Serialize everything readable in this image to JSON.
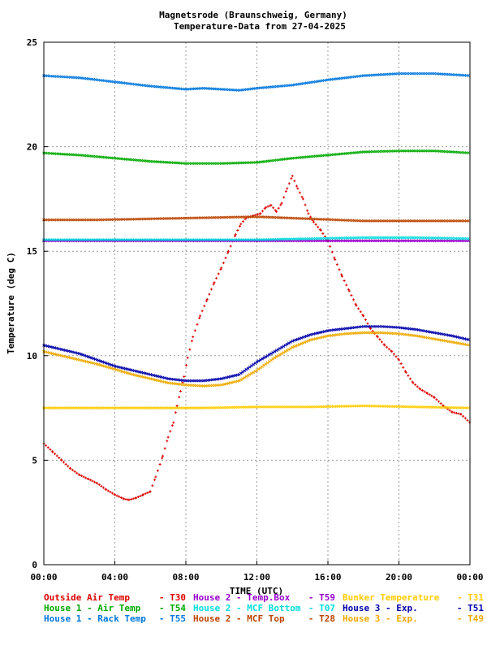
{
  "chart_data": {
    "type": "scatter",
    "title_line1": "Magnetsrode (Braunschweig, Germany)",
    "title_line2": "Temperature-Data from 27-04-2025",
    "xlabel": "TIME (UTC)",
    "ylabel": "Temperature (deg C)",
    "xlim": [
      0,
      24
    ],
    "ylim": [
      0,
      25
    ],
    "grid": true,
    "x_tick_labels": [
      "00:00",
      "04:00",
      "08:00",
      "12:00",
      "16:00",
      "20:00",
      "00:00"
    ],
    "y_tick_labels": [
      "0",
      "5",
      "10",
      "15",
      "20",
      "25"
    ],
    "series": [
      {
        "legend": "Outside Air Temp",
        "tag": "T30",
        "color": "#dd0000",
        "marker": "plus",
        "points": [
          [
            0,
            5.8
          ],
          [
            0.5,
            5.4
          ],
          [
            1,
            5.0
          ],
          [
            1.5,
            4.6
          ],
          [
            2,
            4.3
          ],
          [
            2.5,
            4.1
          ],
          [
            3,
            3.9
          ],
          [
            3.5,
            3.6
          ],
          [
            4,
            3.35
          ],
          [
            4.5,
            3.15
          ],
          [
            4.8,
            3.1
          ],
          [
            5.2,
            3.2
          ],
          [
            5.6,
            3.35
          ],
          [
            6,
            3.5
          ],
          [
            6.3,
            4.2
          ],
          [
            6.7,
            5.2
          ],
          [
            7,
            6.1
          ],
          [
            7.3,
            6.8
          ],
          [
            7.5,
            7.6
          ],
          [
            7.7,
            8.3
          ],
          [
            7.9,
            9.0
          ],
          [
            8.1,
            9.9
          ],
          [
            8.4,
            10.9
          ],
          [
            8.8,
            11.9
          ],
          [
            9.2,
            12.7
          ],
          [
            9.6,
            13.5
          ],
          [
            10,
            14.2
          ],
          [
            10.4,
            15.0
          ],
          [
            10.8,
            15.8
          ],
          [
            11.1,
            16.3
          ],
          [
            11.4,
            16.6
          ],
          [
            11.8,
            16.7
          ],
          [
            12.2,
            16.8
          ],
          [
            12.5,
            17.1
          ],
          [
            12.8,
            17.2
          ],
          [
            13.1,
            16.9
          ],
          [
            13.4,
            17.3
          ],
          [
            13.7,
            18.0
          ],
          [
            14,
            18.6
          ],
          [
            14.3,
            18.0
          ],
          [
            14.6,
            17.5
          ],
          [
            14.9,
            16.8
          ],
          [
            15.2,
            16.4
          ],
          [
            15.6,
            16.0
          ],
          [
            16,
            15.5
          ],
          [
            16.4,
            14.6
          ],
          [
            16.8,
            13.8
          ],
          [
            17.2,
            13.1
          ],
          [
            17.6,
            12.4
          ],
          [
            18,
            11.9
          ],
          [
            18.4,
            11.3
          ],
          [
            18.8,
            10.9
          ],
          [
            19.2,
            10.5
          ],
          [
            19.6,
            10.2
          ],
          [
            20,
            9.8
          ],
          [
            20.4,
            9.2
          ],
          [
            20.8,
            8.7
          ],
          [
            21.2,
            8.4
          ],
          [
            21.6,
            8.2
          ],
          [
            22,
            8.0
          ],
          [
            22.5,
            7.6
          ],
          [
            23,
            7.3
          ],
          [
            23.5,
            7.2
          ],
          [
            24,
            6.8
          ]
        ]
      },
      {
        "legend": "House 2 - Temp.Box",
        "tag": "T59",
        "color": "#9900cc",
        "marker": "cross",
        "points": [
          [
            0,
            15.5
          ],
          [
            3,
            15.5
          ],
          [
            6,
            15.5
          ],
          [
            9,
            15.5
          ],
          [
            12,
            15.5
          ],
          [
            15,
            15.5
          ],
          [
            18,
            15.5
          ],
          [
            21,
            15.5
          ],
          [
            24,
            15.5
          ]
        ]
      },
      {
        "legend": "Bunker Temperature",
        "tag": "T31",
        "color": "#ffcc00",
        "marker": "cross",
        "points": [
          [
            0,
            7.5
          ],
          [
            3,
            7.5
          ],
          [
            6,
            7.5
          ],
          [
            9,
            7.5
          ],
          [
            12,
            7.55
          ],
          [
            15,
            7.55
          ],
          [
            18,
            7.6
          ],
          [
            21,
            7.55
          ],
          [
            24,
            7.5
          ]
        ]
      },
      {
        "legend": "House 1 - Air  Temp",
        "tag": "T54",
        "color": "#00aa00",
        "marker": "cross",
        "points": [
          [
            0,
            19.7
          ],
          [
            2,
            19.6
          ],
          [
            4,
            19.45
          ],
          [
            6,
            19.3
          ],
          [
            8,
            19.2
          ],
          [
            10,
            19.2
          ],
          [
            12,
            19.25
          ],
          [
            14,
            19.45
          ],
          [
            16,
            19.6
          ],
          [
            18,
            19.75
          ],
          [
            20,
            19.8
          ],
          [
            22,
            19.8
          ],
          [
            24,
            19.7
          ]
        ]
      },
      {
        "legend": "House 2 - MCF Bottom",
        "tag": "T07",
        "color": "#00dddd",
        "marker": "cross",
        "points": [
          [
            0,
            15.55
          ],
          [
            4,
            15.55
          ],
          [
            8,
            15.55
          ],
          [
            12,
            15.55
          ],
          [
            15,
            15.6
          ],
          [
            18,
            15.65
          ],
          [
            21,
            15.65
          ],
          [
            24,
            15.6
          ]
        ]
      },
      {
        "legend": "House 3 - Exp.",
        "tag": "T51",
        "color": "#0000aa",
        "marker": "cross",
        "points": [
          [
            0,
            10.5
          ],
          [
            1,
            10.3
          ],
          [
            2,
            10.1
          ],
          [
            3,
            9.8
          ],
          [
            4,
            9.5
          ],
          [
            5,
            9.3
          ],
          [
            6,
            9.1
          ],
          [
            7,
            8.9
          ],
          [
            8,
            8.8
          ],
          [
            9,
            8.8
          ],
          [
            10,
            8.9
          ],
          [
            11,
            9.1
          ],
          [
            12,
            9.7
          ],
          [
            13,
            10.2
          ],
          [
            14,
            10.7
          ],
          [
            15,
            11.0
          ],
          [
            16,
            11.2
          ],
          [
            17,
            11.3
          ],
          [
            18,
            11.4
          ],
          [
            19,
            11.4
          ],
          [
            20,
            11.35
          ],
          [
            21,
            11.25
          ],
          [
            22,
            11.1
          ],
          [
            23,
            10.95
          ],
          [
            24,
            10.75
          ]
        ]
      },
      {
        "legend": "House 1 - Rack Temp",
        "tag": "T55",
        "color": "#0077dd",
        "marker": "cross",
        "points": [
          [
            0,
            23.4
          ],
          [
            2,
            23.3
          ],
          [
            4,
            23.1
          ],
          [
            6,
            22.9
          ],
          [
            8,
            22.75
          ],
          [
            9,
            22.8
          ],
          [
            10,
            22.75
          ],
          [
            11,
            22.7
          ],
          [
            12,
            22.8
          ],
          [
            14,
            22.95
          ],
          [
            16,
            23.2
          ],
          [
            18,
            23.4
          ],
          [
            20,
            23.5
          ],
          [
            22,
            23.5
          ],
          [
            24,
            23.4
          ]
        ]
      },
      {
        "legend": "House 2 - MCF Top",
        "tag": "T28",
        "color": "#bb4400",
        "marker": "cross",
        "points": [
          [
            0,
            16.5
          ],
          [
            3,
            16.5
          ],
          [
            6,
            16.55
          ],
          [
            9,
            16.6
          ],
          [
            12,
            16.65
          ],
          [
            15,
            16.55
          ],
          [
            18,
            16.45
          ],
          [
            21,
            16.45
          ],
          [
            24,
            16.45
          ]
        ]
      },
      {
        "legend": "House 3 - Exp.",
        "tag": "T49",
        "color": "#eeaa00",
        "marker": "cross",
        "points": [
          [
            0,
            10.2
          ],
          [
            1,
            10.0
          ],
          [
            2,
            9.8
          ],
          [
            3,
            9.6
          ],
          [
            4,
            9.35
          ],
          [
            5,
            9.1
          ],
          [
            6,
            8.9
          ],
          [
            7,
            8.7
          ],
          [
            8,
            8.6
          ],
          [
            9,
            8.55
          ],
          [
            10,
            8.6
          ],
          [
            11,
            8.8
          ],
          [
            12,
            9.3
          ],
          [
            13,
            9.9
          ],
          [
            14,
            10.4
          ],
          [
            15,
            10.75
          ],
          [
            16,
            10.95
          ],
          [
            17,
            11.05
          ],
          [
            18,
            11.1
          ],
          [
            19,
            11.1
          ],
          [
            20,
            11.05
          ],
          [
            21,
            10.95
          ],
          [
            22,
            10.8
          ],
          [
            23,
            10.65
          ],
          [
            24,
            10.5
          ]
        ]
      }
    ]
  }
}
